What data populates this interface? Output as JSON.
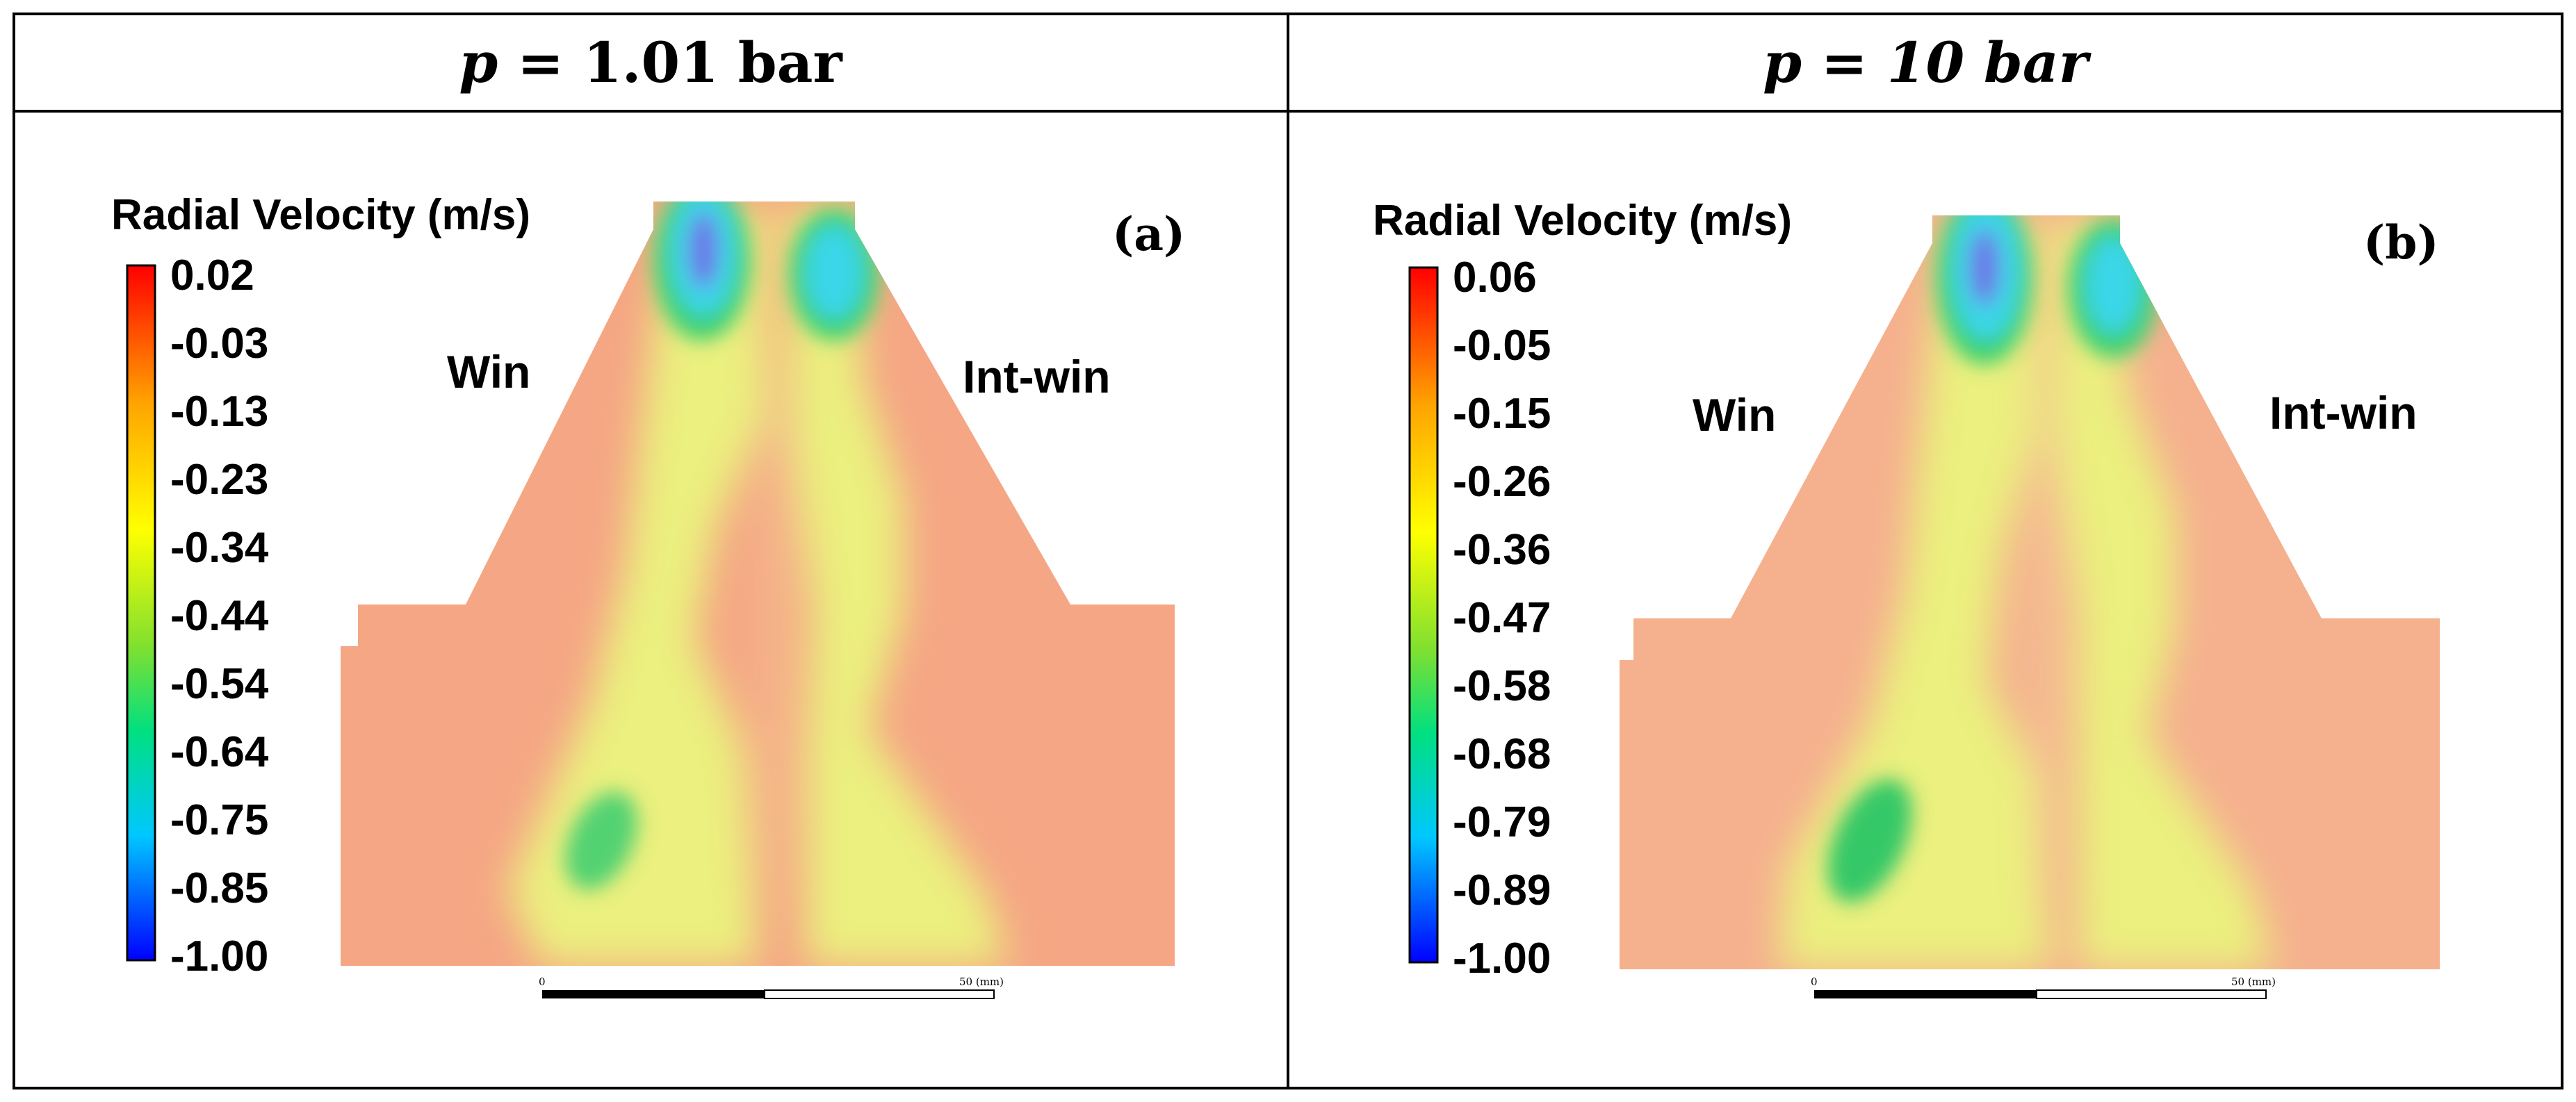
{
  "headers": {
    "left": {
      "var": "p",
      "rest": " = 1.01 bar"
    },
    "right": {
      "var": "p",
      "rest": " = ",
      "rest_italic": "10 bar"
    }
  },
  "colors": {
    "background_flow": "#f5a684",
    "jet_yellow": "#ebf07e",
    "core_green": "#3ed06e",
    "core_cyan": "#3ad6e8",
    "core_blue": "#6a78e8",
    "colormap": [
      "#0000ff",
      "#00c8ff",
      "#00e080",
      "#7fe030",
      "#ffff00",
      "#ffa500",
      "#ff0000"
    ]
  },
  "chart_data": [
    {
      "type": "heatmap",
      "panel_label": "(a)",
      "colorbar_title": "Radial Velocity (m/s)",
      "colorbar_ticks": [
        "0.02",
        "-0.03",
        "-0.13",
        "-0.23",
        "-0.34",
        "-0.44",
        "-0.54",
        "-0.64",
        "-0.75",
        "-0.85",
        "-1.00"
      ],
      "colorbar_range": [
        -1.0,
        0.02
      ],
      "region_labels": {
        "left": "Win",
        "right": "Int-win"
      },
      "scale_bar": {
        "start_label": "0",
        "end_label": "50 (mm)",
        "length_mm": 50
      }
    },
    {
      "type": "heatmap",
      "panel_label": "(b)",
      "colorbar_title": "Radial Velocity (m/s)",
      "colorbar_ticks": [
        "0.06",
        "-0.05",
        "-0.15",
        "-0.26",
        "-0.36",
        "-0.47",
        "-0.58",
        "-0.68",
        "-0.79",
        "-0.89",
        "-1.00"
      ],
      "colorbar_range": [
        -1.0,
        0.06
      ],
      "region_labels": {
        "left": "Win",
        "right": "Int-win"
      },
      "scale_bar": {
        "start_label": "0",
        "end_label": "50 (mm)",
        "length_mm": 50
      }
    }
  ]
}
